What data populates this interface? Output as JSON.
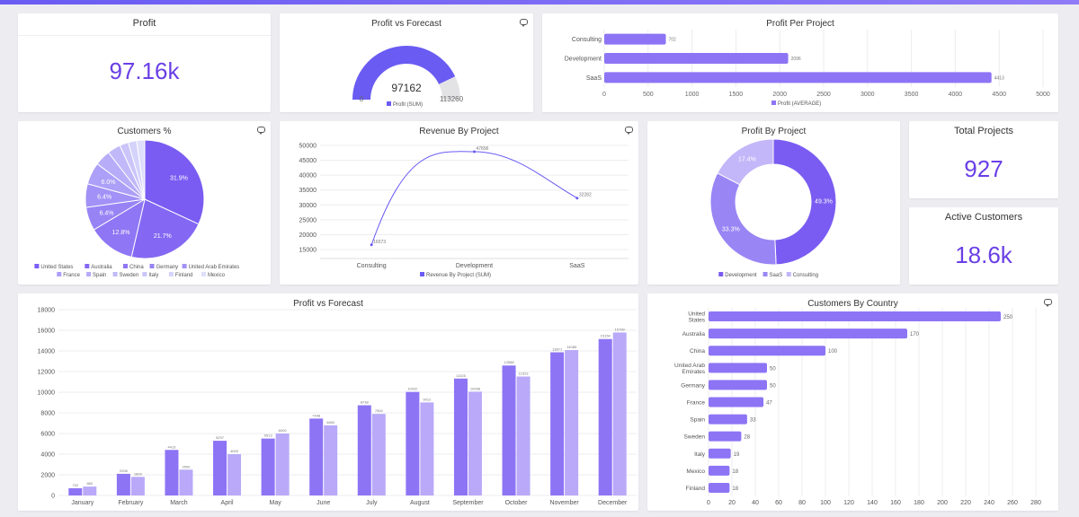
{
  "colors": {
    "accent": "#6a3fe6",
    "primary_bar": "#8d74f5",
    "secondary_bar": "#b9a9f8",
    "grid": "#ececf0",
    "gauge_bg": "#e3e3e6"
  },
  "icons": {
    "comment": "comment-icon"
  },
  "kpis": {
    "profit": {
      "title": "Profit",
      "value": "97.16k"
    },
    "total_projects": {
      "title": "Total Projects",
      "value": "927"
    },
    "active_customers": {
      "title": "Active Customers",
      "value": "18.6k"
    }
  },
  "chart_data": [
    {
      "id": "gauge",
      "type": "gauge",
      "title": "Profit vs Forecast",
      "value": 97162,
      "value_label": "97162",
      "min": 0,
      "min_label": "0",
      "max": 113260,
      "max_label": "113260",
      "legend": [
        "Profit (SUM)"
      ]
    },
    {
      "id": "profit_per_project",
      "type": "bar",
      "orientation": "horizontal",
      "title": "Profit Per Project",
      "categories": [
        "Consulting",
        "Development",
        "SaaS"
      ],
      "values": [
        702,
        2096,
        4413
      ],
      "value_labels": [
        "702",
        "2096",
        "4413"
      ],
      "xlim": [
        0,
        5000
      ],
      "ticks": [
        "0",
        "500",
        "1000",
        "1500",
        "2000",
        "2500",
        "3000",
        "3500",
        "4000",
        "4500",
        "5000"
      ],
      "legend": [
        "Profit (AVERAGE)"
      ]
    },
    {
      "id": "customers_pct",
      "type": "pie",
      "title": "Customers %",
      "labels": [
        "United States",
        "Australia",
        "China",
        "Germany",
        "United Arab Emirates",
        "France",
        "Spain",
        "Sweden",
        "Italy",
        "Finland",
        "Mexico"
      ],
      "values": [
        31.9,
        21.7,
        12.8,
        6.4,
        6.4,
        6.0,
        4.3,
        3.6,
        2.4,
        2.3,
        2.2
      ],
      "slice_labels": [
        "31.9%",
        "21.7%",
        "12.8%",
        "6.4%",
        "6.4%",
        "6.0%",
        "",
        "",
        "",
        "",
        ""
      ],
      "colors": [
        "#7a5cf2",
        "#8468f3",
        "#8e76f4",
        "#9883f5",
        "#a291f6",
        "#ac9ff7",
        "#b6acf8",
        "#c0b9f9",
        "#cac6fa",
        "#d4d3fb",
        "#dedffc"
      ]
    },
    {
      "id": "revenue_by_project",
      "type": "line",
      "title": "Revenue By Project",
      "categories": [
        "Consulting",
        "Development",
        "SaaS"
      ],
      "values": [
        16573,
        47896,
        32282
      ],
      "value_labels": [
        "16573",
        "47896",
        "32282"
      ],
      "ylim": [
        15000,
        50000
      ],
      "yticks": [
        "15000",
        "20000",
        "25000",
        "30000",
        "35000",
        "40000",
        "45000",
        "50000"
      ],
      "legend": [
        "Revenue By Project (SUM)"
      ]
    },
    {
      "id": "profit_by_project",
      "type": "pie",
      "title": "Profit By Project",
      "labels": [
        "Development",
        "SaaS",
        "Consulting"
      ],
      "values": [
        49.3,
        33.3,
        17.4
      ],
      "slice_labels": [
        "49.3%",
        "33.3%",
        "17.4%"
      ],
      "colors": [
        "#7a5cf2",
        "#9a85f5",
        "#c3b6f9"
      ]
    },
    {
      "id": "monthly_profit_vs_forecast",
      "type": "bar",
      "title": "Profit vs Forecast",
      "categories": [
        "January",
        "February",
        "March",
        "April",
        "May",
        "June",
        "July",
        "August",
        "September",
        "October",
        "November",
        "December"
      ],
      "series": [
        {
          "values": [
            702,
            2096,
            4413,
            5297,
            5513,
            7448,
            8738,
            10032,
            11325,
            12588,
            13871,
            15154
          ],
          "value_labels": [
            "702",
            "2096",
            "4413",
            "5297",
            "5513",
            "7448",
            "8738",
            "10032",
            "11325",
            "12588",
            "13871",
            "15154"
          ]
        },
        {
          "values": [
            860,
            1800,
            2500,
            4000,
            6000,
            6800,
            7900,
            9012,
            10058,
            11523,
            14085,
            15789
          ],
          "value_labels": [
            "860",
            "1800",
            "2500",
            "4000",
            "6000",
            "6800",
            "7900",
            "9012",
            "10058",
            "11523",
            "14085",
            "15789"
          ]
        }
      ],
      "ylim": [
        0,
        18000
      ],
      "yticks": [
        "0",
        "2000",
        "4000",
        "6000",
        "8000",
        "10000",
        "12000",
        "14000",
        "16000",
        "18000"
      ]
    },
    {
      "id": "customers_by_country",
      "type": "bar",
      "orientation": "horizontal",
      "title": "Customers By Country",
      "categories": [
        "United States",
        "Australia",
        "China",
        "United Arab Emirates",
        "Germany",
        "France",
        "Spain",
        "Sweden",
        "Italy",
        "Mexico",
        "Finland"
      ],
      "category_lines": [
        [
          "United",
          "States"
        ],
        [
          "Australia"
        ],
        [
          "China"
        ],
        [
          "United Arab",
          "Emirates"
        ],
        [
          "Germany"
        ],
        [
          "France"
        ],
        [
          "Spain"
        ],
        [
          "Sweden"
        ],
        [
          "Italy"
        ],
        [
          "Mexico"
        ],
        [
          "Finland"
        ]
      ],
      "values": [
        250,
        170,
        100,
        50,
        50,
        47,
        33,
        28,
        19,
        18,
        18
      ],
      "value_labels": [
        "250",
        "170",
        "100",
        "50",
        "50",
        "47",
        "33",
        "28",
        "19",
        "18",
        "18"
      ],
      "xlim": [
        0,
        280
      ],
      "ticks": [
        "0",
        "20",
        "40",
        "60",
        "80",
        "100",
        "120",
        "140",
        "160",
        "180",
        "200",
        "220",
        "240",
        "260",
        "280"
      ]
    }
  ]
}
